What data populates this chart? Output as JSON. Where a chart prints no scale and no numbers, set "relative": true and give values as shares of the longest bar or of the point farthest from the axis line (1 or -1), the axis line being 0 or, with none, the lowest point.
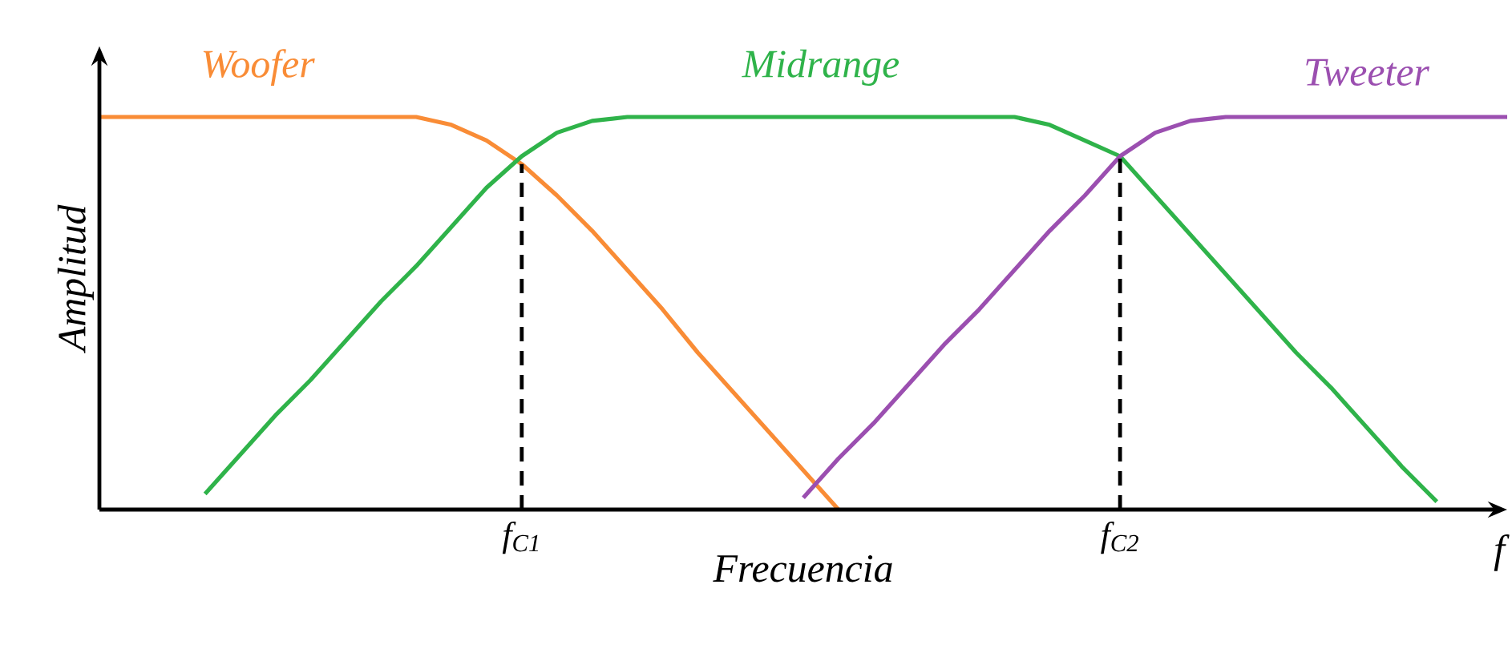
{
  "chart_data": {
    "type": "line",
    "relative": true,
    "xlabel": "Frecuencia",
    "ylabel": "Amplitud",
    "categories": [
      null,
      null,
      null,
      null,
      null,
      null,
      null,
      null,
      null,
      null,
      null,
      null,
      "f$_{C1}$",
      null,
      null,
      null,
      null,
      null,
      null,
      null,
      null,
      null,
      null,
      null,
      null,
      null,
      null,
      null,
      null,
      "f$_{C2}$",
      null,
      null,
      null,
      null,
      null,
      null,
      null,
      null,
      null,
      null,
      null
    ],
    "legend": false,
    "line_style": "solid",
    "marker": "none",
    "ref_lines": [
      {
        "axis": "x",
        "value": "f$_{C1}$",
        "color": "#000000",
        "line_style": "dashed"
      },
      {
        "axis": "x",
        "value": "f$_{C2}$",
        "color": "#000000",
        "line_style": "dashed"
      }
    ],
    "annotations": [
      "f"
    ],
    "series": [
      {
        "name": "Woofer",
        "color": "#f98c36",
        "values": [
          1,
          1,
          1,
          1,
          1,
          1,
          1,
          1,
          1,
          1,
          0.98,
          0.94,
          0.88,
          0.8,
          0.71,
          0.61,
          0.51,
          0.4,
          0.3,
          0.2,
          0.1,
          0,
          null,
          null,
          null,
          null,
          null,
          null,
          null,
          null,
          null,
          null,
          null,
          null,
          null,
          null,
          null,
          null,
          null,
          null,
          null
        ]
      },
      {
        "name": "Midrange",
        "color": "#2fb34a",
        "values": [
          null,
          null,
          null,
          0.04,
          0.14,
          0.24,
          0.33,
          0.43,
          0.53,
          0.62,
          0.72,
          0.82,
          0.9,
          0.96,
          0.99,
          1,
          1,
          1,
          1,
          1,
          1,
          1,
          1,
          1,
          1,
          1,
          1,
          0.98,
          0.94,
          0.9,
          0.8,
          0.7,
          0.6,
          0.5,
          0.4,
          0.31,
          0.21,
          0.11,
          0.02,
          null,
          null
        ]
      },
      {
        "name": "Tweeter",
        "color": "#9b4fb0",
        "values": [
          null,
          null,
          null,
          null,
          null,
          null,
          null,
          null,
          null,
          null,
          null,
          null,
          null,
          null,
          null,
          null,
          null,
          null,
          null,
          null,
          0.03,
          0.13,
          0.22,
          0.32,
          0.42,
          0.51,
          0.61,
          0.71,
          0.8,
          0.9,
          0.96,
          0.99,
          1,
          1,
          1,
          1,
          1,
          1,
          1,
          1,
          1
        ]
      }
    ]
  }
}
